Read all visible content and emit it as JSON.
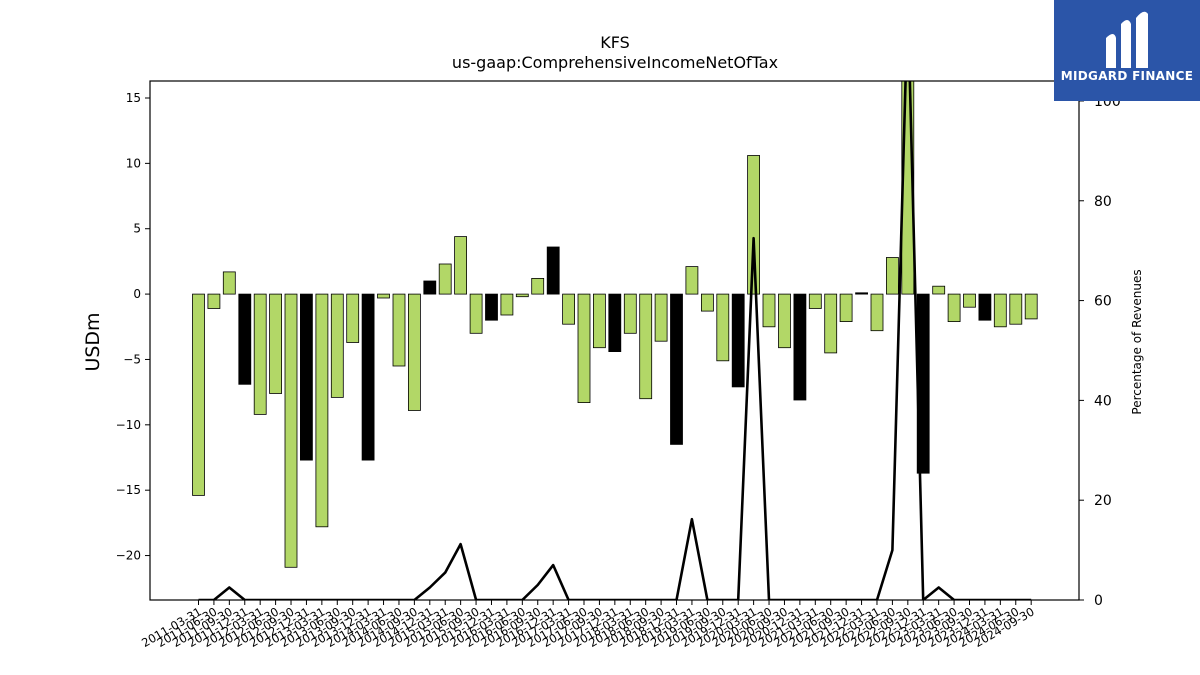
{
  "chart_data": {
    "type": "bar",
    "title": "KFS",
    "subtitle": "us-gaap:ComprehensiveIncomeNetOfTax",
    "ylabel": "USDm",
    "y2label": "Percentage of Revenues",
    "ylim": [
      -23.4,
      16.3
    ],
    "y2lim": [
      0,
      104
    ],
    "yticks": [
      15,
      10,
      5,
      0,
      -5,
      -10,
      -15,
      -20
    ],
    "y2ticks": [
      0,
      20,
      40,
      60,
      80,
      100
    ],
    "grid": false,
    "colors": {
      "positive_quarter": "#b2d767",
      "annual_quarter": "#000000",
      "line": "#000000"
    },
    "categories": [
      "2011-03-31",
      "2011-06-30",
      "2011-09-30",
      "2011-12-31",
      "2012-03-31",
      "2012-06-30",
      "2012-09-30",
      "2012-12-31",
      "2013-03-31",
      "2013-06-30",
      "2013-09-30",
      "2013-12-31",
      "2014-03-31",
      "2014-06-30",
      "2014-09-30",
      "2014-12-31",
      "2015-03-31",
      "2015-06-30",
      "2015-09-30",
      "2015-12-31",
      "2016-03-31",
      "2016-06-30",
      "2016-09-30",
      "2016-12-31",
      "2017-03-31",
      "2017-06-30",
      "2017-09-30",
      "2017-12-31",
      "2018-03-31",
      "2018-06-30",
      "2018-09-30",
      "2018-12-31",
      "2019-03-31",
      "2019-06-30",
      "2019-09-30",
      "2019-12-31",
      "2020-03-31",
      "2020-06-30",
      "2020-09-30",
      "2020-12-31",
      "2021-03-31",
      "2021-06-30",
      "2021-09-30",
      "2021-12-31",
      "2022-03-31",
      "2022-06-30",
      "2022-09-30",
      "2022-12-31",
      "2023-03-31",
      "2023-06-30",
      "2023-09-30",
      "2023-12-31",
      "2024-03-31",
      "2024-06-30",
      "2024-09-30"
    ],
    "values": [
      -15.4,
      -1.1,
      1.7,
      -6.9,
      -9.2,
      -7.6,
      -20.9,
      -12.7,
      -17.8,
      -7.9,
      -3.7,
      -12.7,
      -0.3,
      -5.5,
      -8.9,
      1.0,
      2.3,
      4.4,
      -3.0,
      -2.0,
      -1.6,
      -0.2,
      1.2,
      3.6,
      -2.3,
      -8.3,
      -4.1,
      -4.4,
      -3.0,
      -8.0,
      -3.6,
      -11.5,
      2.1,
      -1.3,
      -5.1,
      -7.1,
      10.6,
      -2.5,
      -4.1,
      -8.1,
      -1.1,
      -4.5,
      -2.1,
      0.1,
      -2.8,
      2.8,
      18.0,
      -13.7,
      0.6,
      -2.1,
      -1.0,
      -2.0,
      -2.5,
      -2.3,
      -1.9
    ],
    "bar_colors": [
      "#b2d767",
      "#b2d767",
      "#b2d767",
      "#000000",
      "#b2d767",
      "#b2d767",
      "#b2d767",
      "#000000",
      "#b2d767",
      "#b2d767",
      "#b2d767",
      "#000000",
      "#b2d767",
      "#b2d767",
      "#b2d767",
      "#000000",
      "#b2d767",
      "#b2d767",
      "#b2d767",
      "#000000",
      "#b2d767",
      "#b2d767",
      "#b2d767",
      "#000000",
      "#b2d767",
      "#b2d767",
      "#b2d767",
      "#000000",
      "#b2d767",
      "#b2d767",
      "#b2d767",
      "#000000",
      "#b2d767",
      "#b2d767",
      "#b2d767",
      "#000000",
      "#b2d767",
      "#b2d767",
      "#b2d767",
      "#000000",
      "#b2d767",
      "#b2d767",
      "#b2d767",
      "#000000",
      "#b2d767",
      "#b2d767",
      "#b2d767",
      "#000000",
      "#b2d767",
      "#b2d767",
      "#b2d767",
      "#000000",
      "#b2d767",
      "#b2d767",
      "#b2d767"
    ],
    "line_values": [
      0,
      0,
      2.5,
      0,
      0,
      0,
      0,
      0,
      0,
      0,
      0,
      0,
      0,
      0,
      0,
      2.5,
      5.5,
      11.2,
      0,
      0,
      0,
      0,
      3,
      7,
      0,
      0,
      0,
      0,
      0,
      0,
      0,
      0,
      16.2,
      0,
      0,
      0,
      72.5,
      0,
      0,
      0,
      0,
      0,
      0,
      0,
      0,
      10,
      120,
      0,
      2.5,
      0,
      0,
      0,
      0,
      0,
      0
    ]
  },
  "logo": {
    "text": "MIDGARD FINANCE",
    "icon": "midgard-logo-icon"
  }
}
